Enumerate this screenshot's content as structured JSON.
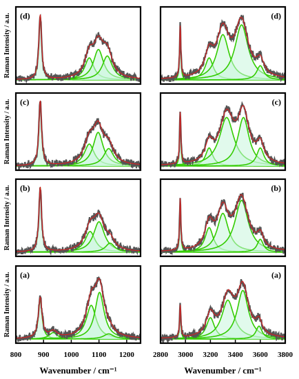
{
  "chart_data": [
    {
      "type": "line",
      "panel_label": "(d)",
      "ylabel": "Raman Intensity / a.u.",
      "xlim": [
        800,
        1250
      ],
      "xticks": [],
      "xlabel": "",
      "peaks": [
        {
          "center": 888,
          "height": 1.0,
          "width": 6
        },
        {
          "center": 1065,
          "height": 0.34,
          "width": 20
        },
        {
          "center": 1098,
          "height": 0.47,
          "width": 22
        },
        {
          "center": 1130,
          "height": 0.37,
          "width": 22
        }
      ]
    },
    {
      "type": "line",
      "panel_label": "(d)",
      "ylabel": "",
      "xlim": [
        2800,
        3800
      ],
      "xticks": [],
      "xlabel": "",
      "peaks": [
        {
          "center": 2958,
          "height": 0.8,
          "width": 6
        },
        {
          "center": 3190,
          "height": 0.34,
          "width": 40
        },
        {
          "center": 3300,
          "height": 0.7,
          "width": 60
        },
        {
          "center": 3450,
          "height": 0.85,
          "width": 65
        },
        {
          "center": 3600,
          "height": 0.22,
          "width": 35
        }
      ]
    },
    {
      "type": "line",
      "panel_label": "(c)",
      "ylabel": "Raman Intensity / a.u.",
      "xlim": [
        800,
        1250
      ],
      "xticks": [],
      "xlabel": "",
      "peaks": [
        {
          "center": 888,
          "height": 1.0,
          "width": 6
        },
        {
          "center": 1065,
          "height": 0.34,
          "width": 22
        },
        {
          "center": 1097,
          "height": 0.52,
          "width": 22
        },
        {
          "center": 1135,
          "height": 0.27,
          "width": 22
        }
      ]
    },
    {
      "type": "line",
      "panel_label": "(c)",
      "ylabel": "",
      "xlim": [
        2800,
        3800
      ],
      "xticks": [],
      "xlabel": "",
      "peaks": [
        {
          "center": 2958,
          "height": 0.8,
          "width": 6
        },
        {
          "center": 3190,
          "height": 0.28,
          "width": 35
        },
        {
          "center": 3330,
          "height": 0.75,
          "width": 70
        },
        {
          "center": 3465,
          "height": 0.75,
          "width": 55
        },
        {
          "center": 3600,
          "height": 0.28,
          "width": 35
        }
      ]
    },
    {
      "type": "line",
      "panel_label": "(b)",
      "ylabel": "Raman Intensity / a.u.",
      "xlim": [
        800,
        1250
      ],
      "xticks": [],
      "xlabel": "",
      "peaks": [
        {
          "center": 888,
          "height": 1.0,
          "width": 6
        },
        {
          "center": 1068,
          "height": 0.32,
          "width": 22
        },
        {
          "center": 1100,
          "height": 0.47,
          "width": 24
        },
        {
          "center": 1140,
          "height": 0.14,
          "width": 20
        }
      ]
    },
    {
      "type": "line",
      "panel_label": "(b)",
      "ylabel": "",
      "xlim": [
        2800,
        3800
      ],
      "xticks": [],
      "xlabel": "",
      "peaks": [
        {
          "center": 2958,
          "height": 0.8,
          "width": 6
        },
        {
          "center": 3190,
          "height": 0.38,
          "width": 40
        },
        {
          "center": 3300,
          "height": 0.6,
          "width": 55
        },
        {
          "center": 3450,
          "height": 0.8,
          "width": 65
        },
        {
          "center": 3600,
          "height": 0.2,
          "width": 30
        }
      ]
    },
    {
      "type": "line",
      "panel_label": "(a)",
      "ylabel": "Raman Intensity / a.u.",
      "xlim": [
        800,
        1250
      ],
      "xticks": [
        800,
        900,
        1000,
        1100,
        1200
      ],
      "xlabel": "Wavenumber / cm⁻¹",
      "peaks": [
        {
          "center": 888,
          "height": 0.62,
          "width": 8
        },
        {
          "center": 935,
          "height": 0.1,
          "width": 18
        },
        {
          "center": 1072,
          "height": 0.52,
          "width": 22
        },
        {
          "center": 1102,
          "height": 0.72,
          "width": 20
        },
        {
          "center": 1135,
          "height": 0.08,
          "width": 22
        }
      ]
    },
    {
      "type": "line",
      "panel_label": "(a)",
      "ylabel": "",
      "xlim": [
        2800,
        3800
      ],
      "xticks": [
        2800,
        3000,
        3200,
        3400,
        3600,
        3800
      ],
      "xlabel": "Wavenumber / cm⁻¹",
      "peaks": [
        {
          "center": 2958,
          "height": 0.5,
          "width": 6
        },
        {
          "center": 3200,
          "height": 0.33,
          "width": 40
        },
        {
          "center": 3340,
          "height": 0.6,
          "width": 60
        },
        {
          "center": 3460,
          "height": 0.75,
          "width": 55
        },
        {
          "center": 3590,
          "height": 0.2,
          "width": 30
        }
      ]
    }
  ],
  "colors": {
    "raw_data": "#555555",
    "fit": "#d62020",
    "component": "#33cc00",
    "component_fill": "#c8f5dc",
    "frame": "#000000"
  }
}
